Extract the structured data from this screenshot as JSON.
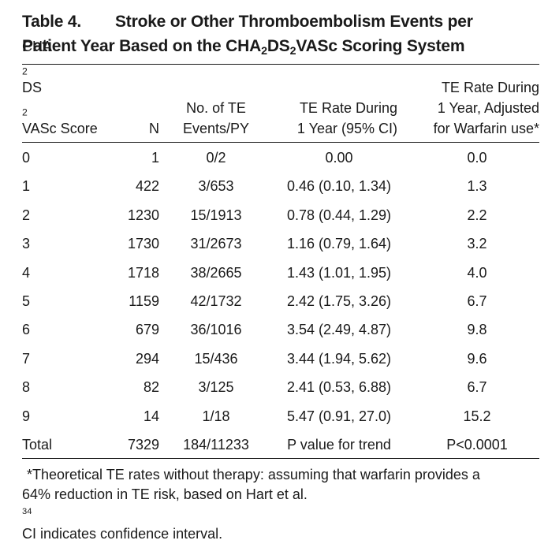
{
  "title": {
    "label": "Table 4.",
    "line1": "Stroke or Other Thromboembolism Events per",
    "line2_pre": "Patient Year Based on the CHA",
    "line2_sub1": "2",
    "line2_mid": "DS",
    "line2_sub2": "2",
    "line2_post": "VASc Scoring System"
  },
  "headers": {
    "score_l1_pre": "CHA",
    "score_l1_sub1": "2",
    "score_l1_mid": "DS",
    "score_l1_sub2": "2",
    "score_l2": "VASc Score",
    "n": "N",
    "events_l1": "No. of TE",
    "events_l2": "Events/PY",
    "rate_l1": "TE Rate During",
    "rate_l2": "1 Year (95% CI)",
    "adj_l1": "TE Rate During",
    "adj_l2": "1 Year, Adjusted",
    "adj_l3": "for Warfarin use*"
  },
  "rows": [
    {
      "score": "0",
      "n": "1",
      "events": "0/2",
      "rate": "0.00",
      "adjusted": "0.0"
    },
    {
      "score": "1",
      "n": "422",
      "events": "3/653",
      "rate": "0.46 (0.10, 1.34)",
      "adjusted": "1.3"
    },
    {
      "score": "2",
      "n": "1230",
      "events": "15/1913",
      "rate": "0.78 (0.44, 1.29)",
      "adjusted": "2.2"
    },
    {
      "score": "3",
      "n": "1730",
      "events": "31/2673",
      "rate": "1.16 (0.79, 1.64)",
      "adjusted": "3.2"
    },
    {
      "score": "4",
      "n": "1718",
      "events": "38/2665",
      "rate": "1.43 (1.01, 1.95)",
      "adjusted": "4.0"
    },
    {
      "score": "5",
      "n": "1159",
      "events": "42/1732",
      "rate": "2.42 (1.75, 3.26)",
      "adjusted": "6.7"
    },
    {
      "score": "6",
      "n": "679",
      "events": "36/1016",
      "rate": "3.54 (2.49, 4.87)",
      "adjusted": "9.8"
    },
    {
      "score": "7",
      "n": "294",
      "events": "15/436",
      "rate": "3.44 (1.94, 5.62)",
      "adjusted": "9.6"
    },
    {
      "score": "8",
      "n": "82",
      "events": "3/125",
      "rate": "2.41 (0.53, 6.88)",
      "adjusted": "6.7"
    },
    {
      "score": "9",
      "n": "14",
      "events": "1/18",
      "rate": "5.47 (0.91, 27.0)",
      "adjusted": "15.2"
    },
    {
      "score": "Total",
      "n": "7329",
      "events": "184/11233",
      "rate": "P value for trend",
      "adjusted": "P<0.0001"
    }
  ],
  "footnote": {
    "line1": "*Theoretical TE rates without therapy: assuming that warfarin provides a",
    "line2_pre": "64% reduction in TE risk, based on Hart et al.",
    "line2_ref": "34",
    "line2_post": " CI indicates confidence interval."
  }
}
